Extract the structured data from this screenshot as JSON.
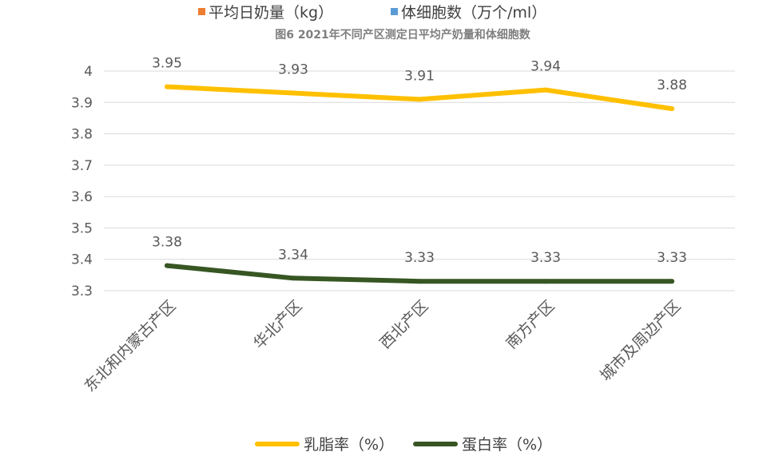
{
  "legend_top": [
    {
      "label": "平均日奶量（kg）",
      "color": "#ED7D31"
    },
    {
      "label": "体细胞数（万个/ml）",
      "color": "#5B9BD5"
    }
  ],
  "chart_data": {
    "type": "line",
    "title": "图6  2021年不同产区测定日平均产奶量和体细胞数",
    "categories": [
      "东北和内蒙古产区",
      "华北产区",
      "西北产区",
      "南方产区",
      "城市及周边产区"
    ],
    "series": [
      {
        "name": "乳脂率（%）",
        "color": "#FFC000",
        "values": [
          3.95,
          3.93,
          3.91,
          3.94,
          3.88
        ],
        "labels": [
          "3.95",
          "3.93",
          "3.91",
          "3.94",
          "3.88"
        ]
      },
      {
        "name": "蛋白率（%）",
        "color": "#375623",
        "values": [
          3.38,
          3.34,
          3.33,
          3.33,
          3.33
        ],
        "labels": [
          "3.38",
          "3.34",
          "3.33",
          "3.33",
          "3.33"
        ]
      }
    ],
    "ylim": [
      3.3,
      4.0
    ],
    "yticks": [
      "3.3",
      "3.4",
      "3.5",
      "3.6",
      "3.7",
      "3.8",
      "3.9",
      "4"
    ],
    "grid": true,
    "legend_position": "bottom"
  }
}
